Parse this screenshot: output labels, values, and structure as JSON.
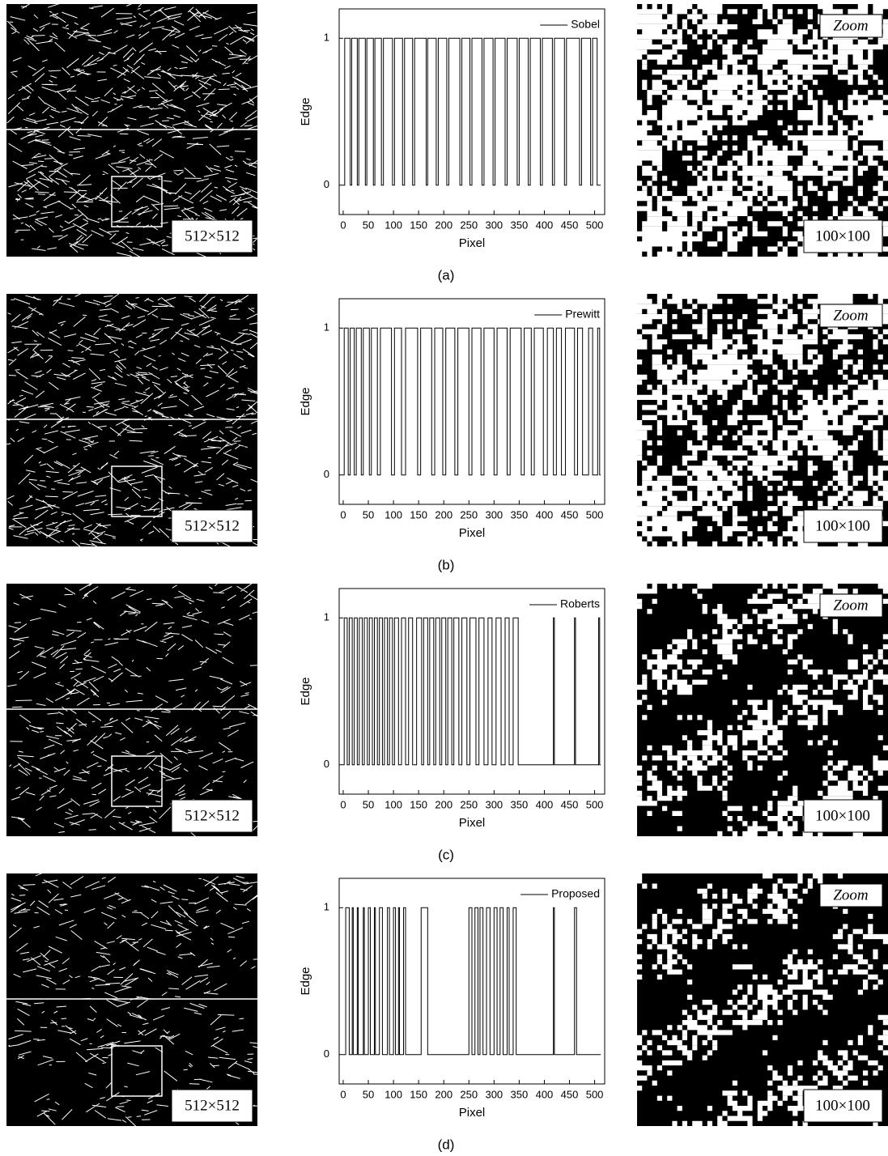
{
  "panels": [
    {
      "caption": "(a)",
      "image_label": "512×512",
      "zoom_label": "Zoom",
      "zoom_size_label": "100×100"
    },
    {
      "caption": "(b)",
      "image_label": "512×512",
      "zoom_label": "Zoom",
      "zoom_size_label": "100×100"
    },
    {
      "caption": "(c)",
      "image_label": "512×512",
      "zoom_label": "Zoom",
      "zoom_size_label": "100×100"
    },
    {
      "caption": "(d)",
      "image_label": "512×512",
      "zoom_label": "Zoom",
      "zoom_size_label": "100×100"
    }
  ],
  "chart_data": [
    {
      "type": "line",
      "xlabel": "Pixel",
      "ylabel": "Edge",
      "legend": "upper right",
      "xlim": [
        -8,
        520
      ],
      "ylim": [
        -0.2,
        1.2
      ],
      "xticks": [
        0,
        50,
        100,
        150,
        200,
        250,
        300,
        350,
        400,
        450,
        500
      ],
      "yticks": [
        0,
        1
      ],
      "x": [
        0,
        3,
        3,
        14,
        14,
        17,
        17,
        28,
        28,
        31,
        31,
        44,
        44,
        47,
        47,
        60,
        60,
        63,
        63,
        76,
        76,
        80,
        80,
        98,
        98,
        102,
        102,
        118,
        118,
        122,
        122,
        138,
        138,
        142,
        142,
        165,
        165,
        168,
        168,
        185,
        185,
        189,
        189,
        206,
        206,
        210,
        210,
        232,
        232,
        236,
        236,
        252,
        252,
        256,
        256,
        276,
        276,
        280,
        280,
        298,
        298,
        302,
        302,
        322,
        322,
        326,
        326,
        346,
        346,
        350,
        350,
        368,
        368,
        372,
        372,
        392,
        392,
        396,
        396,
        416,
        416,
        420,
        420,
        440,
        440,
        444,
        444,
        470,
        470,
        474,
        474,
        492,
        492,
        496,
        496,
        505,
        505,
        512
      ],
      "series": [
        {
          "name": "Sobel",
          "color": "#000000",
          "values": [
            0,
            0,
            1,
            1,
            0,
            0,
            1,
            1,
            0,
            0,
            1,
            1,
            0,
            0,
            1,
            1,
            0,
            0,
            1,
            1,
            0,
            0,
            1,
            1,
            0,
            0,
            1,
            1,
            0,
            0,
            1,
            1,
            0,
            0,
            1,
            1,
            0,
            0,
            1,
            1,
            0,
            0,
            1,
            1,
            0,
            0,
            1,
            1,
            0,
            0,
            1,
            1,
            0,
            0,
            1,
            1,
            0,
            0,
            1,
            1,
            0,
            0,
            1,
            1,
            0,
            0,
            1,
            1,
            0,
            0,
            1,
            1,
            0,
            0,
            1,
            1,
            0,
            0,
            1,
            1,
            0,
            0,
            1,
            1,
            0,
            0,
            1,
            1,
            0,
            0,
            1,
            1,
            0,
            0,
            1,
            1,
            0,
            0
          ]
        }
      ]
    },
    {
      "type": "line",
      "xlabel": "Pixel",
      "ylabel": "Edge",
      "legend": "upper right",
      "xlim": [
        -8,
        520
      ],
      "ylim": [
        -0.2,
        1.2
      ],
      "xticks": [
        0,
        50,
        100,
        150,
        200,
        250,
        300,
        350,
        400,
        450,
        500
      ],
      "yticks": [
        0,
        1
      ],
      "x": [
        0,
        2,
        2,
        10,
        10,
        14,
        14,
        22,
        22,
        26,
        26,
        36,
        36,
        40,
        40,
        52,
        52,
        56,
        56,
        68,
        68,
        74,
        74,
        96,
        96,
        102,
        102,
        116,
        116,
        124,
        124,
        148,
        148,
        154,
        154,
        176,
        176,
        182,
        182,
        198,
        198,
        204,
        204,
        222,
        222,
        228,
        228,
        250,
        250,
        256,
        256,
        274,
        274,
        280,
        280,
        300,
        300,
        306,
        306,
        326,
        326,
        332,
        332,
        354,
        354,
        360,
        360,
        374,
        374,
        380,
        380,
        398,
        398,
        406,
        406,
        418,
        418,
        424,
        424,
        434,
        434,
        442,
        442,
        460,
        460,
        466,
        466,
        476,
        476,
        488,
        488,
        496,
        496,
        506,
        506,
        510,
        510,
        512
      ],
      "series": [
        {
          "name": "Prewitt",
          "color": "#000000",
          "values": [
            0,
            0,
            1,
            1,
            0,
            0,
            1,
            1,
            0,
            0,
            1,
            1,
            0,
            0,
            1,
            1,
            0,
            0,
            1,
            1,
            0,
            0,
            1,
            1,
            0,
            0,
            1,
            1,
            0,
            0,
            1,
            1,
            0,
            0,
            1,
            1,
            0,
            0,
            1,
            1,
            0,
            0,
            1,
            1,
            0,
            0,
            1,
            1,
            0,
            0,
            1,
            1,
            0,
            0,
            1,
            1,
            0,
            0,
            1,
            1,
            0,
            0,
            1,
            1,
            0,
            0,
            1,
            1,
            0,
            0,
            1,
            1,
            0,
            0,
            1,
            1,
            0,
            0,
            1,
            1,
            0,
            0,
            1,
            1,
            0,
            0,
            1,
            1,
            0,
            0,
            1,
            1,
            0,
            0,
            1,
            1,
            0,
            0
          ]
        }
      ]
    },
    {
      "type": "line",
      "xlabel": "Pixel",
      "ylabel": "Edge",
      "legend": "upper right",
      "xlim": [
        -8,
        520
      ],
      "ylim": [
        -0.2,
        1.2
      ],
      "xticks": [
        0,
        50,
        100,
        150,
        200,
        250,
        300,
        350,
        400,
        450,
        500
      ],
      "yticks": [
        0,
        1
      ],
      "x": [
        0,
        2,
        2,
        8,
        8,
        12,
        12,
        18,
        18,
        22,
        22,
        28,
        28,
        32,
        32,
        38,
        38,
        42,
        42,
        48,
        48,
        52,
        52,
        58,
        58,
        62,
        62,
        68,
        68,
        72,
        72,
        78,
        78,
        82,
        82,
        88,
        88,
        92,
        92,
        98,
        98,
        102,
        102,
        110,
        110,
        116,
        116,
        124,
        124,
        130,
        130,
        138,
        138,
        146,
        146,
        156,
        156,
        160,
        160,
        168,
        168,
        172,
        172,
        180,
        180,
        184,
        184,
        192,
        192,
        196,
        196,
        204,
        204,
        208,
        208,
        216,
        216,
        220,
        220,
        230,
        230,
        236,
        236,
        246,
        246,
        252,
        252,
        264,
        264,
        270,
        270,
        280,
        280,
        288,
        288,
        296,
        296,
        304,
        304,
        314,
        314,
        322,
        322,
        330,
        330,
        338,
        338,
        348,
        348,
        418,
        418,
        420,
        420,
        460,
        460,
        462,
        462,
        508,
        508,
        510,
        510,
        512
      ],
      "series": [
        {
          "name": "Roberts",
          "color": "#000000",
          "values": [
            0,
            0,
            1,
            1,
            0,
            0,
            1,
            1,
            0,
            0,
            1,
            1,
            0,
            0,
            1,
            1,
            0,
            0,
            1,
            1,
            0,
            0,
            1,
            1,
            0,
            0,
            1,
            1,
            0,
            0,
            1,
            1,
            0,
            0,
            1,
            1,
            0,
            0,
            1,
            1,
            0,
            0,
            1,
            1,
            0,
            0,
            1,
            1,
            0,
            0,
            1,
            1,
            0,
            0,
            1,
            1,
            0,
            0,
            1,
            1,
            0,
            0,
            1,
            1,
            0,
            0,
            1,
            1,
            0,
            0,
            1,
            1,
            0,
            0,
            1,
            1,
            0,
            0,
            1,
            1,
            0,
            0,
            1,
            1,
            0,
            0,
            1,
            1,
            0,
            0,
            1,
            1,
            0,
            0,
            1,
            1,
            0,
            0,
            1,
            1,
            0,
            0,
            1,
            1,
            0,
            0,
            1,
            1,
            0,
            0,
            1,
            1,
            0,
            0,
            1,
            1,
            0,
            0,
            1,
            1,
            0,
            0
          ]
        }
      ]
    },
    {
      "type": "line",
      "xlabel": "Pixel",
      "ylabel": "Edge",
      "legend": "upper right",
      "xlim": [
        -8,
        520
      ],
      "ylim": [
        -0.2,
        1.2
      ],
      "xticks": [
        0,
        50,
        100,
        150,
        200,
        250,
        300,
        350,
        400,
        450,
        500
      ],
      "yticks": [
        0,
        1
      ],
      "x": [
        0,
        5,
        5,
        12,
        12,
        18,
        18,
        20,
        20,
        28,
        28,
        30,
        30,
        40,
        40,
        42,
        42,
        50,
        50,
        54,
        54,
        62,
        62,
        64,
        64,
        72,
        72,
        78,
        78,
        88,
        88,
        92,
        92,
        100,
        100,
        104,
        104,
        110,
        110,
        112,
        112,
        120,
        120,
        124,
        124,
        155,
        155,
        168,
        168,
        250,
        250,
        256,
        256,
        262,
        262,
        268,
        268,
        272,
        272,
        278,
        278,
        285,
        285,
        292,
        292,
        300,
        300,
        306,
        306,
        312,
        312,
        318,
        318,
        326,
        326,
        330,
        330,
        338,
        338,
        344,
        344,
        418,
        418,
        420,
        420,
        460,
        460,
        464,
        464,
        512
      ],
      "series": [
        {
          "name": "Proposed",
          "color": "#000000",
          "values": [
            0,
            0,
            1,
            1,
            0,
            0,
            1,
            1,
            0,
            0,
            1,
            1,
            0,
            0,
            1,
            1,
            0,
            0,
            1,
            1,
            0,
            0,
            1,
            1,
            0,
            0,
            1,
            1,
            0,
            0,
            1,
            1,
            0,
            0,
            1,
            1,
            0,
            0,
            1,
            1,
            0,
            0,
            1,
            1,
            0,
            0,
            1,
            1,
            0,
            0,
            1,
            1,
            0,
            0,
            1,
            1,
            0,
            0,
            1,
            1,
            0,
            0,
            1,
            1,
            0,
            0,
            1,
            1,
            0,
            0,
            1,
            1,
            0,
            0,
            1,
            1,
            0,
            0,
            1,
            1,
            0,
            0,
            1,
            1,
            0,
            0,
            1,
            1,
            0,
            0
          ]
        }
      ]
    }
  ]
}
